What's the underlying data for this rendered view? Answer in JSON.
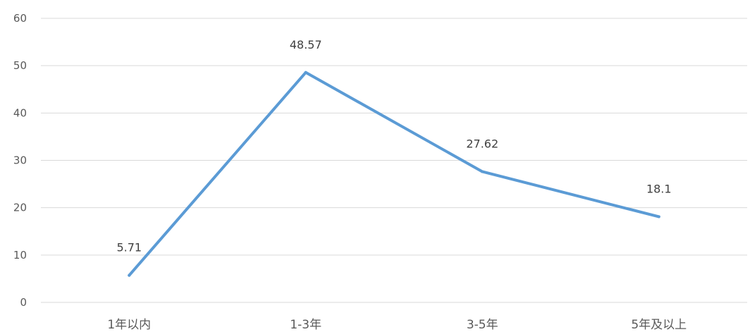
{
  "chart_data": {
    "type": "line",
    "categories": [
      "1年以内",
      "1-3年",
      "3-5年",
      "5年及以上"
    ],
    "series": [
      {
        "values": [
          5.71,
          48.57,
          27.62,
          18.1
        ],
        "data_labels": [
          "5.71",
          "48.57",
          "27.62",
          "18.1"
        ],
        "color": "#5B9BD5"
      }
    ],
    "ylim": [
      0,
      60
    ],
    "yticks": [
      0,
      10,
      20,
      30,
      40,
      50,
      60
    ],
    "ytick_labels": [
      "0",
      "10",
      "20",
      "30",
      "40",
      "50",
      "60"
    ],
    "grid": true,
    "grid_color": "#d9d9d9",
    "legend": "none"
  }
}
